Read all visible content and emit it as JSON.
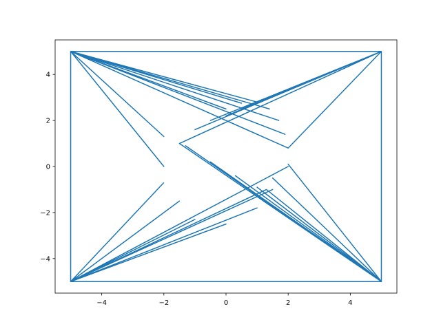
{
  "chart_data": {
    "type": "line",
    "x": [
      -5,
      5,
      5,
      -5,
      -5,
      -2,
      -5,
      -2,
      -5,
      0,
      -5,
      0.5,
      -5,
      1,
      -5,
      1.4,
      -5,
      1.7,
      -5,
      1.9,
      -5,
      2,
      5,
      1,
      5,
      0.5,
      5,
      0,
      5,
      -0.5,
      5,
      -1,
      5,
      -1.5,
      5,
      -1.3,
      5,
      -0.5,
      5,
      0.3,
      5,
      1,
      5,
      2,
      5,
      1.5,
      5,
      1.3,
      -5,
      2,
      -5,
      1.5,
      -5,
      1,
      -5,
      0,
      -5,
      -1,
      -5,
      -1.5,
      -5,
      -2
    ],
    "series": [
      {
        "color": "#1f77b4",
        "values": [
          5,
          5,
          -5,
          -5,
          5,
          1.3,
          5,
          0,
          5,
          2.5,
          5,
          2.75,
          5,
          2.8,
          5,
          2.5,
          5,
          2,
          5,
          1.4,
          5,
          0.8,
          5,
          2.8,
          5,
          2.5,
          5,
          2.2,
          5,
          2,
          5,
          1.6,
          5,
          1,
          -5,
          0.9,
          -5,
          0.2,
          -5,
          -0.4,
          -5,
          -0.9,
          -5,
          0.1,
          -5,
          -0.5,
          -5,
          -1,
          -5,
          0,
          -5,
          -1,
          -5,
          -1.8,
          -5,
          -2.5,
          -5,
          -2.3,
          -5,
          -1.5,
          -5,
          -0.7
        ]
      }
    ],
    "xlim": [
      -5.5,
      5.5
    ],
    "ylim": [
      -5.5,
      5.5
    ],
    "xticks": [
      {
        "value": -4,
        "label": "−4"
      },
      {
        "value": -2,
        "label": "−2"
      },
      0,
      2,
      4
    ],
    "yticks": [
      {
        "value": -4,
        "label": "−4"
      },
      {
        "value": -2,
        "label": "−2"
      },
      0,
      2,
      4
    ]
  }
}
